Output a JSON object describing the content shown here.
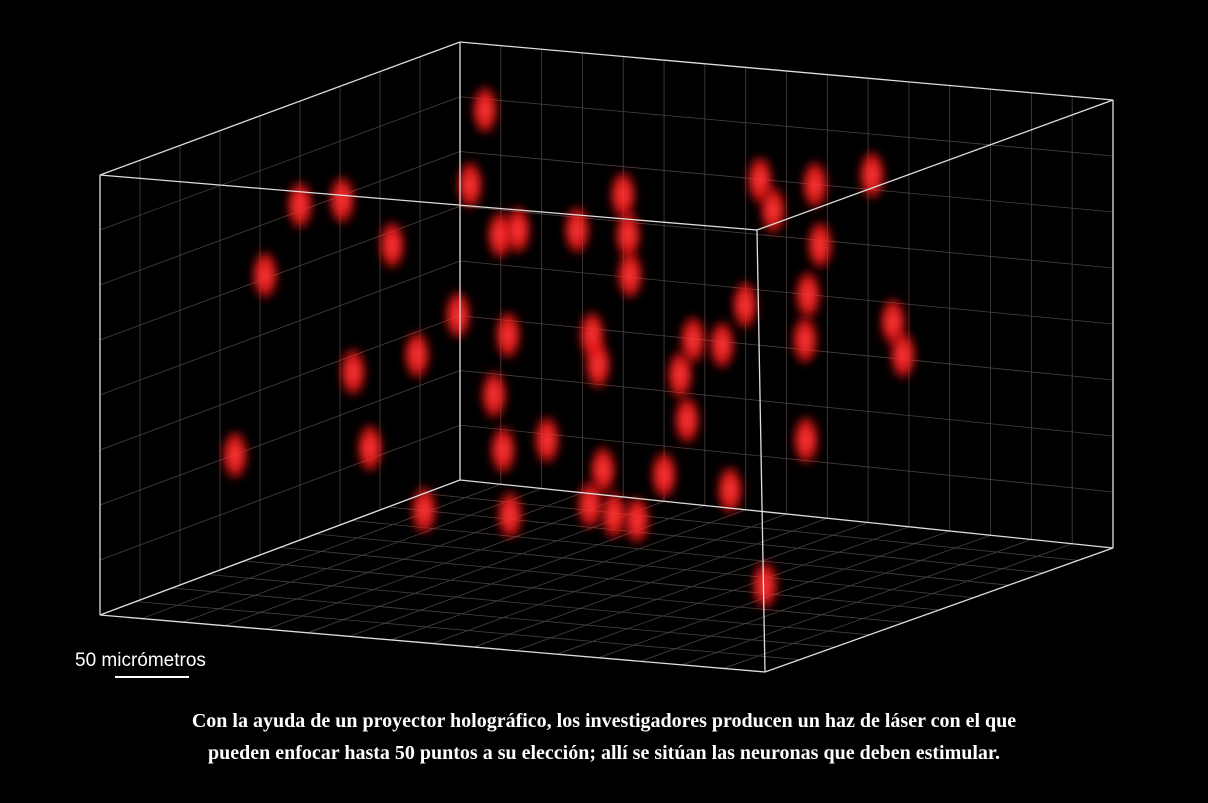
{
  "scale_label": "50 micrómetros",
  "caption": {
    "lines": [
      "Con la ayuda de un proyector holográfico, los investigadores producen un haz de láser con el que",
      "pueden enfocar hasta 50 puntos a su elección; allí se sitúan las neuronas que deben estimular."
    ]
  }
}
